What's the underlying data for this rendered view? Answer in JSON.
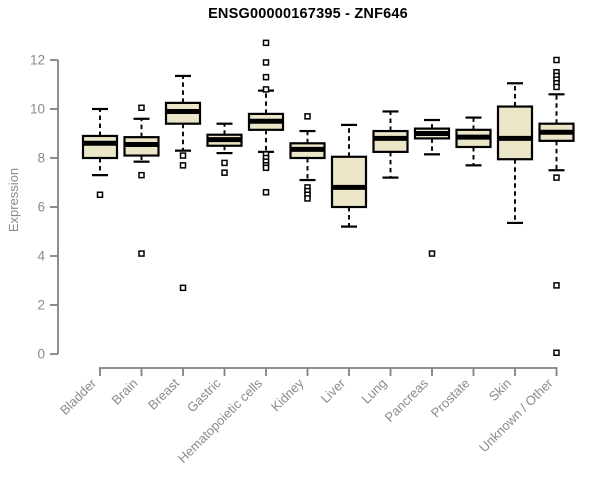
{
  "chart_data": {
    "type": "boxplot",
    "title": "ENSG00000167395 - ZNF646",
    "ylabel": "Expression",
    "xlabel": "",
    "ylim": [
      0,
      12
    ],
    "yticks": [
      0,
      2,
      4,
      6,
      8,
      10,
      12
    ],
    "grid": false,
    "legend": false,
    "x_label_rotation_deg": 45,
    "colors": {
      "box_fill": "#ece6c8",
      "box_border": "#000000",
      "median": "#000000",
      "whisker": "#000000",
      "outlier_stroke": "#000000",
      "outlier_fill": "#ffffff",
      "axis": "#818181",
      "tick_text": "#8b8b8b",
      "title_text": "#000000",
      "background": "#ffffff"
    },
    "categories": [
      "Bladder",
      "Brain",
      "Breast",
      "Gastric",
      "Hematopoietic cells",
      "Kidney",
      "Liver",
      "Lung",
      "Pancreas",
      "Prostate",
      "Skin",
      "Unknown / Other"
    ],
    "series": [
      {
        "label": "Bladder",
        "whisker_low": 7.3,
        "q1": 8.0,
        "median": 8.6,
        "q3": 8.9,
        "whisker_high": 10.0,
        "outliers": [
          6.5
        ]
      },
      {
        "label": "Brain",
        "whisker_low": 7.85,
        "q1": 8.1,
        "median": 8.55,
        "q3": 8.85,
        "whisker_high": 9.6,
        "outliers": [
          10.05,
          7.3,
          4.1
        ]
      },
      {
        "label": "Breast",
        "whisker_low": 8.3,
        "q1": 9.4,
        "median": 9.9,
        "q3": 10.25,
        "whisker_high": 11.35,
        "outliers": [
          8.1,
          7.7,
          2.7
        ]
      },
      {
        "label": "Gastric",
        "whisker_low": 8.2,
        "q1": 8.5,
        "median": 8.75,
        "q3": 8.95,
        "whisker_high": 9.4,
        "outliers": [
          7.8,
          7.4
        ]
      },
      {
        "label": "Hematopoietic cells",
        "whisker_low": 8.25,
        "q1": 9.15,
        "median": 9.5,
        "q3": 9.8,
        "whisker_high": 10.75,
        "outliers": [
          12.7,
          11.9,
          11.3,
          10.8,
          8.15,
          8.0,
          7.85,
          7.7,
          7.6,
          6.6
        ]
      },
      {
        "label": "Kidney",
        "whisker_low": 7.1,
        "q1": 8.0,
        "median": 8.35,
        "q3": 8.6,
        "whisker_high": 9.1,
        "outliers": [
          9.7,
          6.8,
          6.65,
          6.5,
          6.35
        ]
      },
      {
        "label": "Liver",
        "whisker_low": 5.2,
        "q1": 6.0,
        "median": 6.8,
        "q3": 8.05,
        "whisker_high": 9.35,
        "outliers": []
      },
      {
        "label": "Lung",
        "whisker_low": 7.2,
        "q1": 8.25,
        "median": 8.8,
        "q3": 9.1,
        "whisker_high": 9.9,
        "outliers": []
      },
      {
        "label": "Pancreas",
        "whisker_low": 8.15,
        "q1": 8.8,
        "median": 9.0,
        "q3": 9.2,
        "whisker_high": 9.55,
        "outliers": [
          4.1
        ]
      },
      {
        "label": "Prostate",
        "whisker_low": 7.7,
        "q1": 8.45,
        "median": 8.85,
        "q3": 9.15,
        "whisker_high": 9.65,
        "outliers": []
      },
      {
        "label": "Skin",
        "whisker_low": 5.35,
        "q1": 7.95,
        "median": 8.8,
        "q3": 10.1,
        "whisker_high": 11.05,
        "outliers": []
      },
      {
        "label": "Unknown / Other",
        "whisker_low": 7.5,
        "q1": 8.7,
        "median": 9.05,
        "q3": 9.4,
        "whisker_high": 10.6,
        "outliers": [
          12.0,
          11.5,
          11.35,
          11.2,
          11.05,
          10.9,
          7.2,
          2.8,
          0.05
        ]
      }
    ]
  }
}
